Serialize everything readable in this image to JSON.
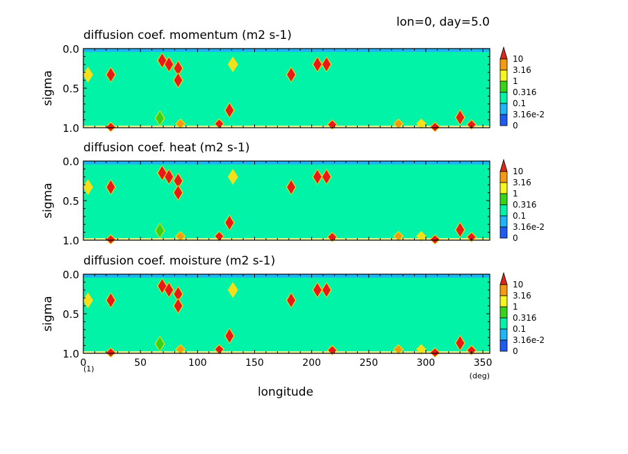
{
  "header": {
    "label": "lon=0, day=5.0"
  },
  "figure": {
    "ylabel": "sigma",
    "xlabel": "longitude",
    "x_unit": "(deg)",
    "bottom_left_note": "(1)"
  },
  "colors": {
    "background": "#00f3a6",
    "band_top": "#1fb5f5",
    "contour_fill": "#f2e11a",
    "peak": "#e81919"
  },
  "colorbar": {
    "levels": [
      "10",
      "3.16",
      "1",
      "0.316",
      "0.1",
      "3.16e-2",
      "0"
    ],
    "bins": [
      {
        "color": "#d62a1d"
      },
      {
        "color": "#f29a12"
      },
      {
        "color": "#f5f523"
      },
      {
        "color": "#39d21b"
      },
      {
        "color": "#00f3a6"
      },
      {
        "color": "#1fb5f5"
      },
      {
        "color": "#1e5cf0"
      }
    ]
  },
  "chart_data": [
    {
      "type": "heatmap",
      "title": "diffusion coef. momentum (m2 s-1)",
      "xlim": [
        0,
        356
      ],
      "ylim": [
        1.0,
        0.0
      ],
      "xticks": [
        "0",
        "50",
        "100",
        "150",
        "200",
        "250",
        "300",
        "350"
      ],
      "yticks": [
        "0.0",
        "0.5",
        "1.0"
      ],
      "field_background": "0.1 - 0.316",
      "peaks": [
        {
          "lon": 4,
          "sigma": 0.33,
          "level": "yellow"
        },
        {
          "lon": 24,
          "sigma": 0.33,
          "level": "red"
        },
        {
          "lon": 69,
          "sigma": 0.15,
          "level": "red"
        },
        {
          "lon": 75,
          "sigma": 0.2,
          "level": "red"
        },
        {
          "lon": 83,
          "sigma": 0.25,
          "level": "red"
        },
        {
          "lon": 83,
          "sigma": 0.4,
          "level": "red"
        },
        {
          "lon": 131,
          "sigma": 0.2,
          "level": "yellow"
        },
        {
          "lon": 128,
          "sigma": 0.78,
          "level": "red"
        },
        {
          "lon": 182,
          "sigma": 0.33,
          "level": "red"
        },
        {
          "lon": 205,
          "sigma": 0.2,
          "level": "red"
        },
        {
          "lon": 213,
          "sigma": 0.2,
          "level": "red"
        },
        {
          "lon": 67,
          "sigma": 0.88,
          "level": "green"
        },
        {
          "lon": 85,
          "sigma": 0.95,
          "level": "orange"
        },
        {
          "lon": 119,
          "sigma": 0.95,
          "level": "red"
        },
        {
          "lon": 218,
          "sigma": 0.96,
          "level": "red"
        },
        {
          "lon": 276,
          "sigma": 0.95,
          "level": "orange"
        },
        {
          "lon": 296,
          "sigma": 0.95,
          "level": "yellow"
        },
        {
          "lon": 330,
          "sigma": 0.87,
          "level": "red"
        },
        {
          "lon": 340,
          "sigma": 0.96,
          "level": "red"
        },
        {
          "lon": 24,
          "sigma": 0.99,
          "level": "red"
        },
        {
          "lon": 308,
          "sigma": 0.99,
          "level": "red"
        }
      ]
    },
    {
      "type": "heatmap",
      "title": "diffusion coef. heat (m2 s-1)",
      "xlim": [
        0,
        356
      ],
      "ylim": [
        1.0,
        0.0
      ],
      "xticks": [
        "0",
        "50",
        "100",
        "150",
        "200",
        "250",
        "300",
        "350"
      ],
      "yticks": [
        "0.0",
        "0.5",
        "1.0"
      ],
      "field_background": "0.1 - 0.316",
      "peaks": [
        {
          "lon": 4,
          "sigma": 0.33,
          "level": "yellow"
        },
        {
          "lon": 24,
          "sigma": 0.33,
          "level": "red"
        },
        {
          "lon": 69,
          "sigma": 0.15,
          "level": "red"
        },
        {
          "lon": 75,
          "sigma": 0.2,
          "level": "red"
        },
        {
          "lon": 83,
          "sigma": 0.25,
          "level": "red"
        },
        {
          "lon": 83,
          "sigma": 0.4,
          "level": "red"
        },
        {
          "lon": 131,
          "sigma": 0.2,
          "level": "yellow"
        },
        {
          "lon": 128,
          "sigma": 0.78,
          "level": "red"
        },
        {
          "lon": 182,
          "sigma": 0.33,
          "level": "red"
        },
        {
          "lon": 205,
          "sigma": 0.2,
          "level": "red"
        },
        {
          "lon": 213,
          "sigma": 0.2,
          "level": "red"
        },
        {
          "lon": 67,
          "sigma": 0.88,
          "level": "green"
        },
        {
          "lon": 85,
          "sigma": 0.95,
          "level": "orange"
        },
        {
          "lon": 119,
          "sigma": 0.95,
          "level": "red"
        },
        {
          "lon": 218,
          "sigma": 0.96,
          "level": "red"
        },
        {
          "lon": 276,
          "sigma": 0.95,
          "level": "orange"
        },
        {
          "lon": 296,
          "sigma": 0.95,
          "level": "yellow"
        },
        {
          "lon": 330,
          "sigma": 0.87,
          "level": "red"
        },
        {
          "lon": 340,
          "sigma": 0.96,
          "level": "red"
        },
        {
          "lon": 24,
          "sigma": 0.99,
          "level": "red"
        },
        {
          "lon": 308,
          "sigma": 0.99,
          "level": "red"
        }
      ]
    },
    {
      "type": "heatmap",
      "title": "diffusion coef. moisture (m2 s-1)",
      "xlim": [
        0,
        356
      ],
      "ylim": [
        1.0,
        0.0
      ],
      "xticks": [
        "0",
        "50",
        "100",
        "150",
        "200",
        "250",
        "300",
        "350"
      ],
      "yticks": [
        "0.0",
        "0.5",
        "1.0"
      ],
      "field_background": "0.1 - 0.316",
      "peaks": [
        {
          "lon": 4,
          "sigma": 0.33,
          "level": "yellow"
        },
        {
          "lon": 24,
          "sigma": 0.33,
          "level": "red"
        },
        {
          "lon": 69,
          "sigma": 0.15,
          "level": "red"
        },
        {
          "lon": 75,
          "sigma": 0.2,
          "level": "red"
        },
        {
          "lon": 83,
          "sigma": 0.25,
          "level": "red"
        },
        {
          "lon": 83,
          "sigma": 0.4,
          "level": "red"
        },
        {
          "lon": 131,
          "sigma": 0.2,
          "level": "yellow"
        },
        {
          "lon": 128,
          "sigma": 0.78,
          "level": "red"
        },
        {
          "lon": 182,
          "sigma": 0.33,
          "level": "red"
        },
        {
          "lon": 205,
          "sigma": 0.2,
          "level": "red"
        },
        {
          "lon": 213,
          "sigma": 0.2,
          "level": "red"
        },
        {
          "lon": 67,
          "sigma": 0.88,
          "level": "green"
        },
        {
          "lon": 85,
          "sigma": 0.95,
          "level": "orange"
        },
        {
          "lon": 119,
          "sigma": 0.95,
          "level": "red"
        },
        {
          "lon": 218,
          "sigma": 0.96,
          "level": "red"
        },
        {
          "lon": 276,
          "sigma": 0.95,
          "level": "orange"
        },
        {
          "lon": 296,
          "sigma": 0.95,
          "level": "yellow"
        },
        {
          "lon": 330,
          "sigma": 0.87,
          "level": "red"
        },
        {
          "lon": 340,
          "sigma": 0.96,
          "level": "red"
        },
        {
          "lon": 24,
          "sigma": 0.99,
          "level": "red"
        },
        {
          "lon": 308,
          "sigma": 0.99,
          "level": "red"
        }
      ]
    }
  ]
}
